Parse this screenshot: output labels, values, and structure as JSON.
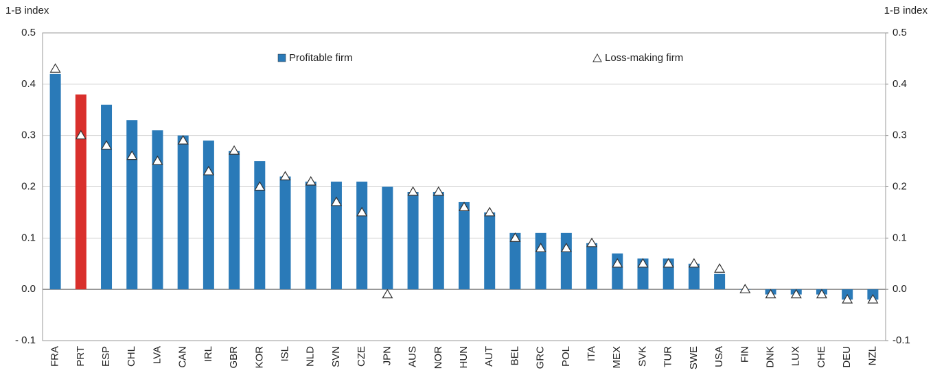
{
  "chart_data": {
    "type": "bar",
    "ylabel": "1-B index",
    "y2label": "1-B index",
    "categories": [
      "FRA",
      "PRT",
      "ESP",
      "CHL",
      "LVA",
      "CAN",
      "IRL",
      "GBR",
      "KOR",
      "ISL",
      "NLD",
      "SVN",
      "CZE",
      "JPN",
      "AUS",
      "NOR",
      "HUN",
      "AUT",
      "BEL",
      "GRC",
      "POL",
      "ITA",
      "MEX",
      "SVK",
      "TUR",
      "SWE",
      "USA",
      "FIN",
      "DNK",
      "LUX",
      "CHE",
      "DEU",
      "NZL"
    ],
    "series": [
      {
        "name": "Profitable firm",
        "kind": "bar",
        "color": "#2a7ab8",
        "values": [
          0.42,
          0.38,
          0.36,
          0.33,
          0.31,
          0.3,
          0.29,
          0.27,
          0.25,
          0.22,
          0.21,
          0.21,
          0.21,
          0.2,
          0.19,
          0.19,
          0.17,
          0.15,
          0.11,
          0.11,
          0.11,
          0.09,
          0.07,
          0.06,
          0.06,
          0.05,
          0.03,
          0.0,
          -0.01,
          -0.01,
          -0.01,
          -0.02,
          -0.02
        ]
      },
      {
        "name": "Loss-making firm",
        "kind": "triangle",
        "color": "#ffffff",
        "values": [
          0.43,
          0.3,
          0.28,
          0.26,
          0.25,
          0.29,
          0.23,
          0.27,
          0.2,
          0.22,
          0.21,
          0.17,
          0.15,
          -0.01,
          0.19,
          0.19,
          0.16,
          0.15,
          0.1,
          0.08,
          0.08,
          0.09,
          0.05,
          0.05,
          0.05,
          0.05,
          0.04,
          0.0,
          -0.01,
          -0.01,
          -0.01,
          -0.02,
          -0.02
        ]
      }
    ],
    "highlight": "PRT",
    "highlight_color": "#d9302c",
    "ylim": [
      -0.1,
      0.5
    ],
    "yticks": [
      {
        "value": -0.1,
        "label": "- 0.1"
      },
      0.1,
      0.2,
      0.3,
      0.4,
      0.5,
      {
        "value": 0,
        "label": "0.0"
      }
    ],
    "y2lim": [
      -0.1,
      0.5
    ],
    "y2ticks": [
      {
        "value": -0.1,
        "label": "-0.1"
      },
      0.1,
      0.2,
      0.3,
      0.4,
      0.5,
      {
        "value": 0,
        "label": "0.0"
      }
    ],
    "grid": true,
    "legend": "top"
  }
}
